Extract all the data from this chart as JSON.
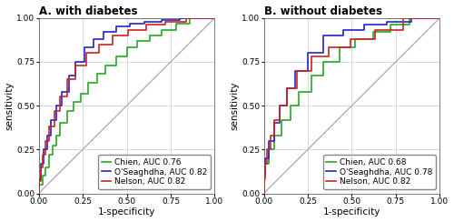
{
  "panel_A_title": "A. with diabetes",
  "panel_B_title": "B. without diabetes",
  "xlabel": "1-specificity",
  "ylabel": "sensitivity",
  "xlim": [
    0,
    1.0
  ],
  "ylim": [
    0,
    1.0
  ],
  "xticks": [
    0.0,
    0.25,
    0.5,
    0.75,
    1.0
  ],
  "yticks": [
    0.0,
    0.25,
    0.5,
    0.75,
    1.0
  ],
  "colors": {
    "Chien": "#22AA22",
    "OSeaghdha": "#2222CC",
    "Nelson": "#CC2222",
    "diagonal": "#AAAAAA"
  },
  "legend_A": [
    {
      "label": "Chien, AUC 0.76",
      "color": "#22AA22"
    },
    {
      "label": "O'Seaghdha, AUC 0.82",
      "color": "#2222CC"
    },
    {
      "label": "Nelson, AUC 0.82",
      "color": "#CC2222"
    }
  ],
  "legend_B": [
    {
      "label": "Chien, AUC 0.68",
      "color": "#22AA22"
    },
    {
      "label": "O'Seaghdha, AUC 0.78",
      "color": "#2222CC"
    },
    {
      "label": "Nelson, AUC 0.82",
      "color": "#CC2222"
    }
  ],
  "roc_A_Chien_fpr": [
    0,
    0,
    0.02,
    0.02,
    0.04,
    0.04,
    0.06,
    0.06,
    0.08,
    0.08,
    0.1,
    0.1,
    0.12,
    0.12,
    0.16,
    0.16,
    0.2,
    0.2,
    0.24,
    0.24,
    0.28,
    0.28,
    0.33,
    0.33,
    0.38,
    0.38,
    0.44,
    0.44,
    0.5,
    0.5,
    0.56,
    0.56,
    0.63,
    0.63,
    0.7,
    0.7,
    0.78,
    0.78,
    0.86,
    0.86,
    1.0
  ],
  "roc_A_Chien_tpr": [
    0,
    0.05,
    0.05,
    0.1,
    0.1,
    0.15,
    0.15,
    0.22,
    0.22,
    0.27,
    0.27,
    0.33,
    0.33,
    0.4,
    0.4,
    0.47,
    0.47,
    0.52,
    0.52,
    0.57,
    0.57,
    0.63,
    0.63,
    0.68,
    0.68,
    0.73,
    0.73,
    0.78,
    0.78,
    0.83,
    0.83,
    0.87,
    0.87,
    0.9,
    0.9,
    0.93,
    0.93,
    0.97,
    0.97,
    1.0,
    1.0
  ],
  "roc_A_OSeaghdha_fpr": [
    0,
    0,
    0.01,
    0.01,
    0.03,
    0.03,
    0.05,
    0.05,
    0.07,
    0.07,
    0.1,
    0.1,
    0.13,
    0.13,
    0.17,
    0.17,
    0.21,
    0.21,
    0.26,
    0.26,
    0.31,
    0.31,
    0.37,
    0.37,
    0.44,
    0.44,
    0.52,
    0.52,
    0.6,
    0.6,
    0.7,
    0.7,
    0.8,
    0.8,
    1.0
  ],
  "roc_A_OSeaghdha_tpr": [
    0,
    0.08,
    0.08,
    0.17,
    0.17,
    0.25,
    0.25,
    0.33,
    0.33,
    0.42,
    0.42,
    0.5,
    0.5,
    0.58,
    0.58,
    0.67,
    0.67,
    0.75,
    0.75,
    0.83,
    0.83,
    0.88,
    0.88,
    0.92,
    0.92,
    0.95,
    0.95,
    0.97,
    0.97,
    0.98,
    0.98,
    0.99,
    0.99,
    1.0,
    1.0
  ],
  "roc_A_Nelson_fpr": [
    0,
    0,
    0.01,
    0.01,
    0.02,
    0.02,
    0.04,
    0.04,
    0.06,
    0.06,
    0.09,
    0.09,
    0.12,
    0.12,
    0.16,
    0.16,
    0.21,
    0.21,
    0.27,
    0.27,
    0.34,
    0.34,
    0.42,
    0.42,
    0.51,
    0.51,
    0.61,
    0.61,
    0.72,
    0.72,
    0.84,
    0.84,
    1.0
  ],
  "roc_A_Nelson_tpr": [
    0,
    0.07,
    0.07,
    0.15,
    0.15,
    0.22,
    0.22,
    0.3,
    0.3,
    0.38,
    0.38,
    0.47,
    0.47,
    0.55,
    0.55,
    0.65,
    0.65,
    0.73,
    0.73,
    0.8,
    0.8,
    0.85,
    0.85,
    0.9,
    0.9,
    0.93,
    0.93,
    0.96,
    0.96,
    0.98,
    0.98,
    1.0,
    1.0
  ],
  "roc_B_Chien_fpr": [
    0,
    0,
    0.03,
    0.03,
    0.06,
    0.06,
    0.1,
    0.1,
    0.15,
    0.15,
    0.2,
    0.2,
    0.27,
    0.27,
    0.34,
    0.34,
    0.43,
    0.43,
    0.52,
    0.52,
    0.62,
    0.62,
    0.72,
    0.72,
    0.83,
    0.83,
    1.0
  ],
  "roc_B_Chien_tpr": [
    0,
    0.17,
    0.17,
    0.25,
    0.25,
    0.33,
    0.33,
    0.42,
    0.42,
    0.5,
    0.5,
    0.58,
    0.58,
    0.67,
    0.67,
    0.75,
    0.75,
    0.83,
    0.83,
    0.88,
    0.88,
    0.92,
    0.92,
    0.96,
    0.96,
    1.0,
    1.0
  ],
  "roc_B_OSeaghdha_fpr": [
    0,
    0,
    0.01,
    0.01,
    0.03,
    0.03,
    0.06,
    0.06,
    0.09,
    0.09,
    0.13,
    0.13,
    0.18,
    0.18,
    0.25,
    0.25,
    0.34,
    0.34,
    0.45,
    0.45,
    0.57,
    0.57,
    0.7,
    0.7,
    0.84,
    0.84,
    1.0
  ],
  "roc_B_OSeaghdha_tpr": [
    0,
    0.1,
    0.1,
    0.2,
    0.2,
    0.3,
    0.3,
    0.4,
    0.4,
    0.5,
    0.5,
    0.6,
    0.6,
    0.7,
    0.7,
    0.8,
    0.8,
    0.9,
    0.9,
    0.93,
    0.93,
    0.96,
    0.96,
    0.98,
    0.98,
    1.0,
    1.0
  ],
  "roc_B_Nelson_fpr": [
    0,
    0,
    0.01,
    0.01,
    0.02,
    0.02,
    0.04,
    0.04,
    0.06,
    0.06,
    0.09,
    0.09,
    0.13,
    0.13,
    0.19,
    0.19,
    0.27,
    0.27,
    0.37,
    0.37,
    0.49,
    0.49,
    0.63,
    0.63,
    0.79,
    0.79,
    1.0
  ],
  "roc_B_Nelson_tpr": [
    0,
    0.08,
    0.08,
    0.17,
    0.17,
    0.25,
    0.25,
    0.33,
    0.33,
    0.42,
    0.42,
    0.5,
    0.5,
    0.6,
    0.6,
    0.7,
    0.7,
    0.78,
    0.78,
    0.83,
    0.83,
    0.88,
    0.88,
    0.93,
    0.93,
    1.0,
    1.0
  ],
  "background_color": "#ffffff",
  "grid_color": "#cccccc",
  "title_fontsize": 8.5,
  "axis_fontsize": 7.5,
  "tick_fontsize": 6.5,
  "legend_fontsize": 6.5,
  "linewidth": 1.2
}
